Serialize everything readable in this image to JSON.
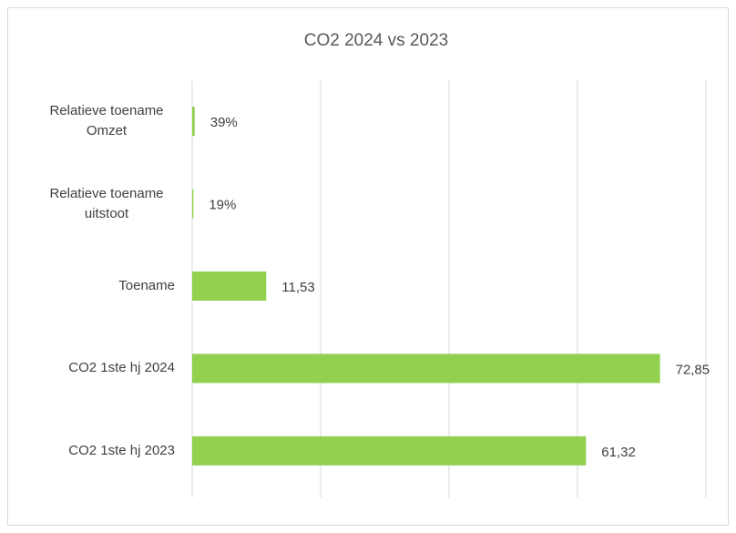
{
  "chart_data": {
    "type": "bar",
    "orientation": "horizontal",
    "title": "CO2  2024 vs 2023",
    "categories": [
      "Relatieve toename Omzet",
      "Relatieve toename uitstoot",
      "Toename",
      "CO2 1ste hj 2024",
      "CO2 1ste hj 2023"
    ],
    "values": [
      0.39,
      0.19,
      11.53,
      72.85,
      61.32
    ],
    "value_labels": [
      "39%",
      "19%",
      "11,53",
      "72,85",
      "61,32"
    ],
    "color": "#92d050",
    "xlim": [
      0,
      80
    ],
    "xticks": [
      0,
      20,
      40,
      60,
      80
    ],
    "grid": true
  }
}
